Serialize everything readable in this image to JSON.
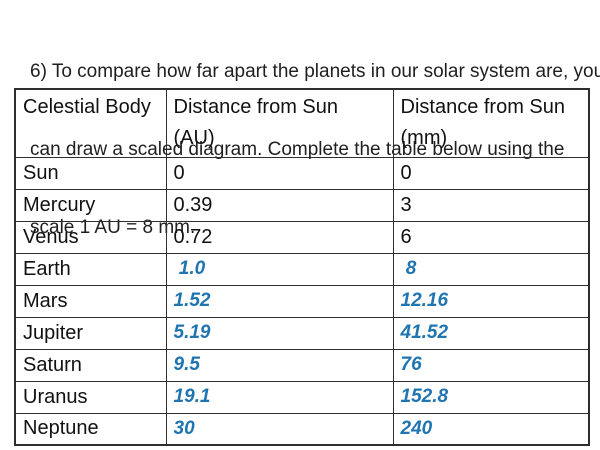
{
  "question": {
    "lines": [
      "6) To compare how far apart the planets in our solar system are, you",
      "can draw a scaled diagram. Complete the table below using the",
      "scale 1 AU = 8 mm."
    ]
  },
  "table": {
    "headers": [
      {
        "line1": "Celestial Body",
        "line2": ""
      },
      {
        "line1": "Distance from Sun",
        "line2": "(AU)"
      },
      {
        "line1": "Distance from Sun",
        "line2": "(mm)"
      }
    ],
    "rows": [
      {
        "body": "Sun",
        "au": "0",
        "mm": "0",
        "filled": false
      },
      {
        "body": "Mercury",
        "au": "0.39",
        "mm": "3",
        "filled": false
      },
      {
        "body": "Venus",
        "au": "0.72",
        "mm": "6",
        "filled": false
      },
      {
        "body": "Earth",
        "au": " 1.0",
        "mm": " 8",
        "filled": true
      },
      {
        "body": "Mars",
        "au": "1.52",
        "mm": "12.16",
        "filled": true
      },
      {
        "body": "Jupiter",
        "au": "5.19",
        "mm": "41.52",
        "filled": true
      },
      {
        "body": "Saturn",
        "au": "9.5",
        "mm": "76",
        "filled": true
      },
      {
        "body": "Uranus",
        "au": "19.1",
        "mm": "152.8",
        "filled": true
      },
      {
        "body": "Neptune",
        "au": "30",
        "mm": "240",
        "filled": true
      }
    ]
  },
  "colors": {
    "answer_blue": "#1F74B2",
    "text_black": "#111111",
    "border": "#2e2e2e",
    "background": "#ffffff"
  }
}
